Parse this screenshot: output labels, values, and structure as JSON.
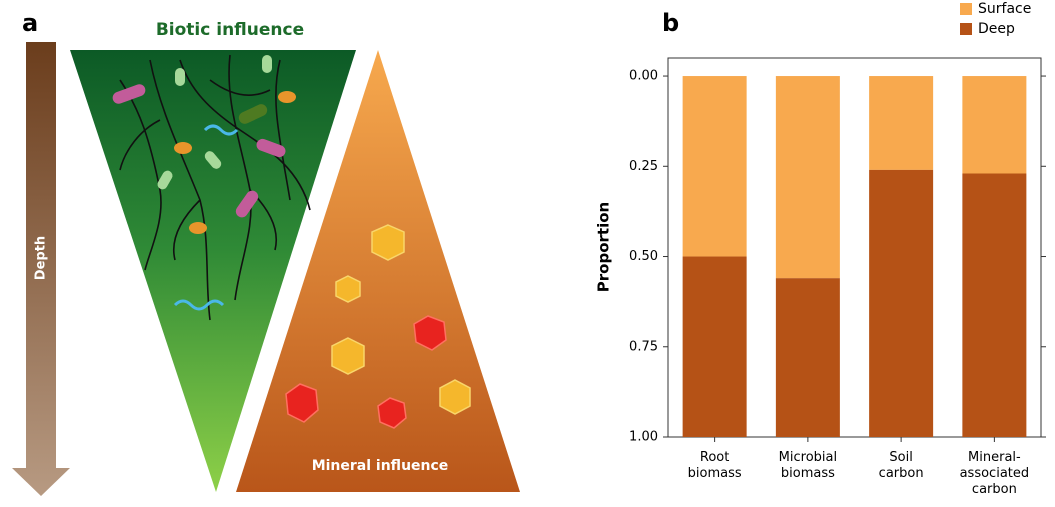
{
  "diagram": {
    "panel_label": "a",
    "depth_label": "Depth",
    "top_label": "Biotic influence",
    "bottom_label": "Mineral influence"
  },
  "chart_data": {
    "type": "stacked_bar",
    "panel_label": "b",
    "y_label": "Proportion",
    "categories": [
      "Root biomass",
      "Microbial biomass",
      "Soil carbon",
      "Mineral-associated carbon"
    ],
    "series": [
      {
        "name": "Surface",
        "color": "#f8a94e",
        "values": [
          0.5,
          0.56,
          0.26,
          0.27
        ]
      },
      {
        "name": "Deep",
        "color": "#b55216",
        "values": [
          0.5,
          0.44,
          0.74,
          0.73
        ]
      }
    ],
    "ylim": [
      -0.05,
      1.0
    ],
    "y_inverted": true,
    "yticks": [
      {
        "value": 0,
        "label": "0.00"
      },
      {
        "value": 0.25,
        "label": "0.25"
      },
      {
        "value": 0.5,
        "label": "0.50"
      },
      {
        "value": 0.75,
        "label": "0.75"
      },
      {
        "value": 1,
        "label": "1.00"
      }
    ],
    "legend": "top-right"
  }
}
